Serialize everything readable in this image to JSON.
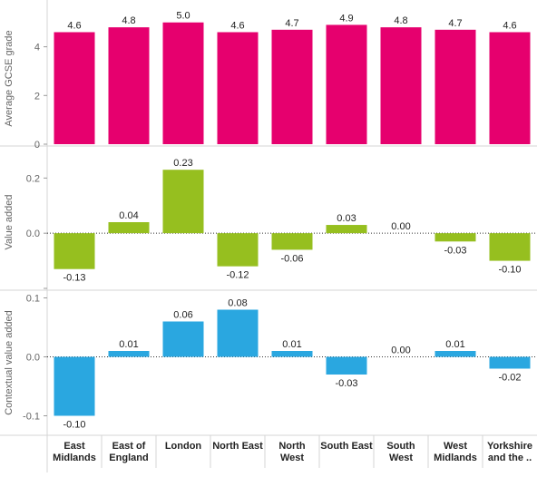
{
  "colors": {
    "gcse": "#e6006e",
    "value_added": "#96bf1f",
    "contextual_value_added": "#2aa7e0",
    "axis_text": "#666666",
    "label_text": "#222222",
    "divider": "#d4d4d4",
    "zero_line": "#333333"
  },
  "chart_data": {
    "type": "bar",
    "categories": [
      [
        "East",
        "Midlands"
      ],
      [
        "East of",
        "England"
      ],
      [
        "London"
      ],
      [
        "North East"
      ],
      [
        "North",
        "West"
      ],
      [
        "South East"
      ],
      [
        "South",
        "West"
      ],
      [
        "West",
        "Midlands"
      ],
      [
        "Yorkshire",
        "and the .."
      ]
    ],
    "panels": [
      {
        "ylabel": "Average GCSE grade",
        "ylim": [
          0,
          5.4
        ],
        "yticks": [
          0,
          2,
          4
        ],
        "ytick_labels": [
          "0",
          "2",
          "4"
        ],
        "zero_line": false,
        "color_key": "gcse",
        "values": [
          4.6,
          4.8,
          5.0,
          4.6,
          4.7,
          4.9,
          4.8,
          4.7,
          4.6
        ],
        "value_labels": [
          "4.6",
          "4.8",
          "5.0",
          "4.6",
          "4.7",
          "4.9",
          "4.8",
          "4.7",
          "4.6"
        ]
      },
      {
        "ylabel": "Value added",
        "ylim": [
          -0.2,
          0.28
        ],
        "yticks": [
          -0.2,
          0.0,
          0.2
        ],
        "ytick_labels": [
          "",
          "0.0",
          "0.2"
        ],
        "zero_line": true,
        "color_key": "value_added",
        "values": [
          -0.13,
          0.04,
          0.23,
          -0.12,
          -0.06,
          0.03,
          0.0,
          -0.03,
          -0.1
        ],
        "value_labels": [
          "-0.13",
          "0.04",
          "0.23",
          "-0.12",
          "-0.06",
          "0.03",
          "0.00",
          "-0.03",
          "-0.10"
        ]
      },
      {
        "ylabel": "Contextual value added",
        "ylim": [
          -0.13,
          0.11
        ],
        "yticks": [
          -0.1,
          0.0,
          0.1
        ],
        "ytick_labels": [
          "-0.1",
          "0.0",
          "0.1"
        ],
        "zero_line": true,
        "color_key": "contextual_value_added",
        "values": [
          -0.1,
          0.01,
          0.06,
          0.08,
          0.01,
          -0.03,
          0.0,
          0.01,
          -0.02
        ],
        "value_labels": [
          "-0.10",
          "0.01",
          "0.06",
          "0.08",
          "0.01",
          "-0.03",
          "0.00",
          "0.01",
          "-0.02"
        ]
      }
    ]
  }
}
